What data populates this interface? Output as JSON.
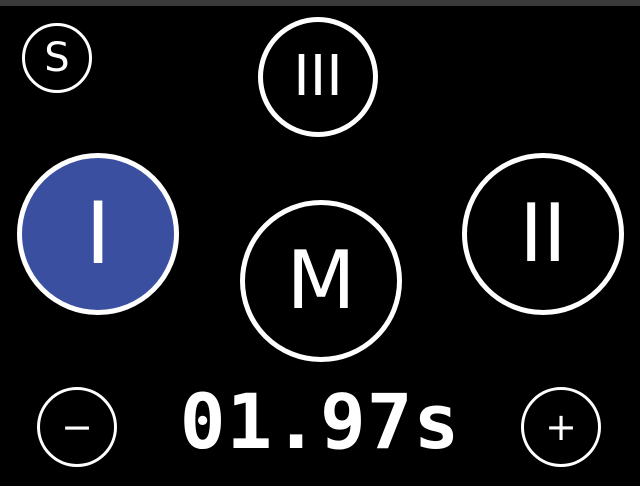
{
  "buttons": {
    "s_label": "S",
    "iii_label": "III",
    "i_label": "I",
    "ii_label": "II",
    "m_label": "M",
    "minus_label": "−",
    "plus_label": "+"
  },
  "timer": {
    "value": "01.97s"
  },
  "colors": {
    "background": "#000000",
    "foreground": "#ffffff",
    "active": "#3a4fa0"
  },
  "state": {
    "active_button": "I"
  }
}
